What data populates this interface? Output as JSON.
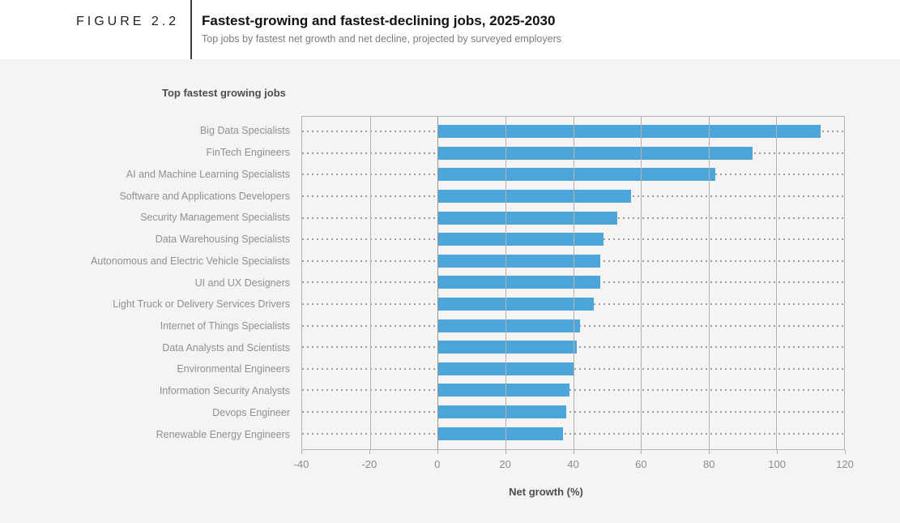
{
  "header": {
    "figure_label": "FIGURE 2.2",
    "title": "Fastest-growing and fastest-declining jobs, 2025-2030",
    "subtitle": "Top jobs by fastest net growth and net decline, projected by surveyed employers"
  },
  "chart_data": {
    "type": "bar",
    "orientation": "horizontal",
    "section_label": "Top fastest growing jobs",
    "categories": [
      "Big Data Specialists",
      "FinTech Engineers",
      "AI and Machine Learning Specialists",
      "Software and Applications Developers",
      "Security Management Specialists",
      "Data Warehousing Specialists",
      "Autonomous and Electric Vehicle Specialists",
      "UI and UX Designers",
      "Light Truck or Delivery Services Drivers",
      "Internet of Things Specialists",
      "Data Analysts and Scientists",
      "Environmental Engineers",
      "Information Security Analysts",
      "Devops Engineer",
      "Renewable Energy Engineers"
    ],
    "values": [
      113,
      93,
      82,
      57,
      53,
      49,
      48,
      48,
      46,
      42,
      41,
      40,
      39,
      38,
      37
    ],
    "xlabel": "Net growth (%)",
    "xlim": [
      -40,
      120
    ],
    "x_ticks": [
      -40,
      -20,
      0,
      20,
      40,
      60,
      80,
      100,
      120
    ],
    "grid": true,
    "leader_lines": "dotted",
    "legend_position": "none"
  },
  "colors": {
    "bar": "#4DA6D9",
    "page_background": "#F5F4F2",
    "header_background": "#FFFFFF",
    "gridline": "#B3B3B3",
    "zero_line": "#969696",
    "leader_dots": "#9E9E9E",
    "axis_text": "#8D8D8D",
    "label_text": "#909090"
  }
}
